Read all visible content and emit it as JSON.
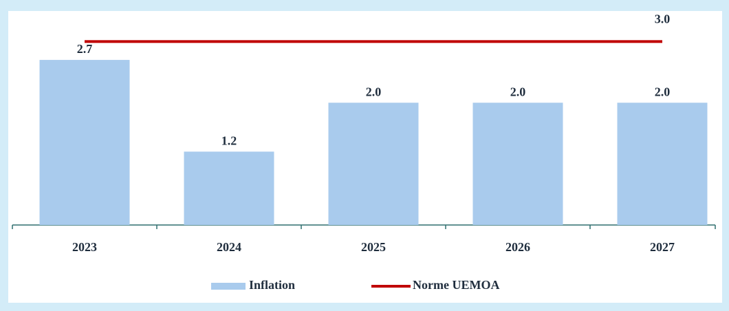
{
  "chart_data": {
    "type": "bar_line",
    "categories": [
      "2023",
      "2024",
      "2025",
      "2026",
      "2027"
    ],
    "series": [
      {
        "name": "Inflation",
        "color": "#a9cbed",
        "type": "bar",
        "values": [
          2.7,
          1.2,
          2.0,
          2.0,
          2.0
        ],
        "value_labels": [
          "2.7",
          "1.2",
          "2.0",
          "2.0",
          "2.0"
        ]
      },
      {
        "name": "Norme UEMOA",
        "color": "#c00000",
        "type": "line",
        "values": [
          3.0,
          3.0,
          3.0,
          3.0,
          3.0
        ],
        "value_labels": [
          null,
          null,
          null,
          null,
          "3.0"
        ]
      }
    ],
    "ylim": [
      0,
      3.5
    ],
    "legend": "bottom"
  }
}
